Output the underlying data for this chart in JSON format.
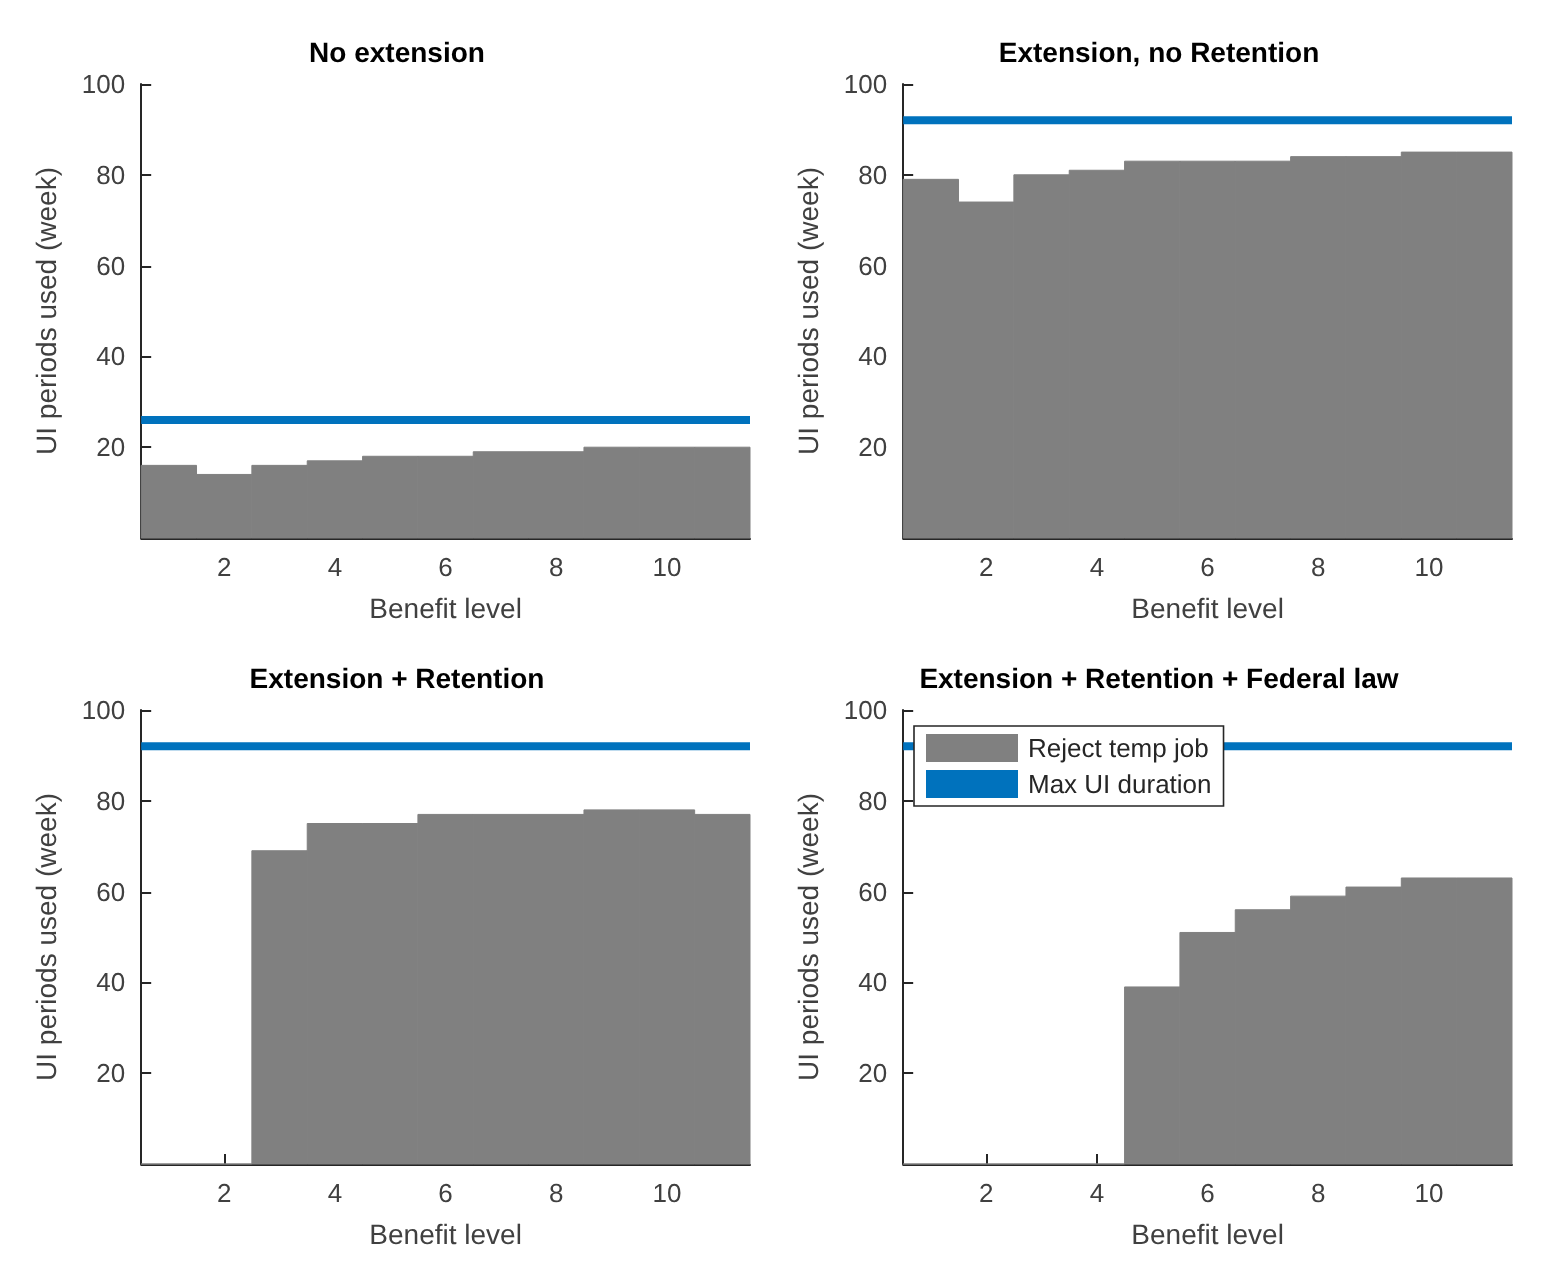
{
  "chart_data": [
    {
      "type": "bar",
      "title": "No extension",
      "xlabel": "Benefit level",
      "ylabel": "UI periods used (week)",
      "x": [
        1,
        2,
        3,
        4,
        5,
        6,
        7,
        8,
        9,
        10,
        11
      ],
      "series": [
        {
          "color": "#808080",
          "values": [
            16,
            14,
            16,
            17,
            18,
            18,
            19,
            19,
            20,
            20,
            20
          ]
        }
      ],
      "xlim": [
        0.5,
        11.5
      ],
      "xticks": [
        2,
        4,
        6,
        8,
        10
      ],
      "ylim": [
        0,
        100
      ],
      "yticks": [
        20,
        40,
        60,
        80,
        100
      ],
      "ref_lines": [
        {
          "axis": "y",
          "value": 26,
          "color": "#0072bd"
        }
      ],
      "grid": false,
      "legend": false
    },
    {
      "type": "bar",
      "title": "Extension, no Retention",
      "xlabel": "Benefit level",
      "ylabel": "UI periods used (week)",
      "x": [
        1,
        2,
        3,
        4,
        5,
        6,
        7,
        8,
        9,
        10,
        11
      ],
      "series": [
        {
          "color": "#808080",
          "values": [
            79,
            74,
            80,
            81,
            83,
            83,
            83,
            84,
            84,
            85,
            85
          ]
        }
      ],
      "xlim": [
        0.5,
        11.5
      ],
      "xticks": [
        2,
        4,
        6,
        8,
        10
      ],
      "ylim": [
        0,
        100
      ],
      "yticks": [
        20,
        40,
        60,
        80,
        100
      ],
      "ref_lines": [
        {
          "axis": "y",
          "value": 92,
          "color": "#0072bd"
        }
      ],
      "grid": false,
      "legend": false
    },
    {
      "type": "bar",
      "title": "Extension + Retention",
      "xlabel": "Benefit level",
      "ylabel": "UI periods used (week)",
      "x": [
        1,
        2,
        3,
        4,
        5,
        6,
        7,
        8,
        9,
        10,
        11
      ],
      "series": [
        {
          "color": "#808080",
          "values": [
            0,
            0,
            69,
            75,
            75,
            77,
            77,
            77,
            78,
            78,
            77
          ]
        }
      ],
      "xlim": [
        0.5,
        11.5
      ],
      "xticks": [
        2,
        4,
        6,
        8,
        10
      ],
      "ylim": [
        0,
        100
      ],
      "yticks": [
        20,
        40,
        60,
        80,
        100
      ],
      "ref_lines": [
        {
          "axis": "y",
          "value": 92,
          "color": "#0072bd"
        }
      ],
      "grid": false,
      "legend": false
    },
    {
      "type": "bar",
      "title": "Extension + Retention + Federal law",
      "xlabel": "Benefit level",
      "ylabel": "UI periods used (week)",
      "x": [
        1,
        2,
        3,
        4,
        5,
        6,
        7,
        8,
        9,
        10,
        11
      ],
      "series": [
        {
          "name": "Reject temp job",
          "color": "#808080",
          "values": [
            0,
            0,
            0,
            0,
            39,
            51,
            56,
            59,
            61,
            63,
            63
          ]
        }
      ],
      "xlim": [
        0.5,
        11.5
      ],
      "xticks": [
        2,
        4,
        6,
        8,
        10
      ],
      "ylim": [
        0,
        100
      ],
      "yticks": [
        20,
        40,
        60,
        80,
        100
      ],
      "ref_lines": [
        {
          "axis": "y",
          "value": 92,
          "label": "Max UI duration",
          "color": "#0072bd"
        }
      ],
      "grid": false,
      "legend": "top left"
    }
  ]
}
